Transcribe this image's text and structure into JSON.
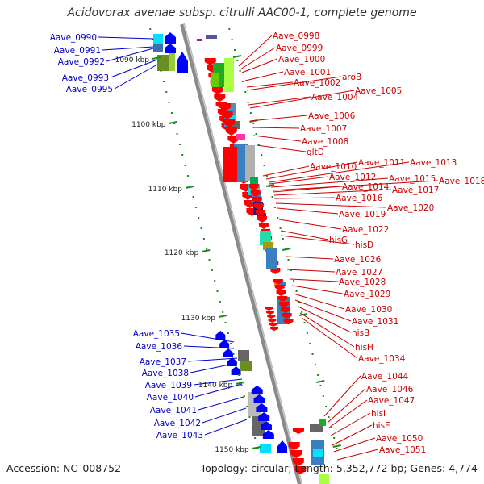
{
  "title": "Acidovorax avenae subsp. citrulli AAC00-1, complete genome",
  "footer": {
    "accession": "Accession: NC_008752",
    "summary": "Topology: circular; Length: 5,352,772 bp; Genes: 4,774"
  },
  "scale_labels": [
    "1090 kbp",
    "1100 kbp",
    "1110 kbp",
    "1120 kbp",
    "1130 kbp",
    "1140 kbp",
    "1150 kbp"
  ],
  "labels_left": [
    "Aave_0990",
    "Aave_0991",
    "Aave_0992",
    "Aave_0993",
    "Aave_0995",
    "Aave_1035",
    "Aave_1036",
    "Aave_1037",
    "Aave_1038",
    "Aave_1039",
    "Aave_1040",
    "Aave_1041",
    "Aave_1042",
    "Aave_1043"
  ],
  "labels_right": [
    "Aave_0998",
    "Aave_0999",
    "Aave_1000",
    "Aave_1001",
    "Aave_1002",
    "aroB",
    "Aave_1004",
    "Aave_1005",
    "Aave_1006",
    "Aave_1007",
    "Aave_1008",
    "gltD",
    "Aave_1010",
    "Aave_1011",
    "Aave_1013",
    "Aave_1012",
    "Aave_1015",
    "Aave_1018",
    "Aave_1014",
    "Aave_1017",
    "Aave_1016",
    "Aave_1020",
    "Aave_1019",
    "Aave_1022",
    "hisG",
    "hisD",
    "Aave_1026",
    "Aave_1027",
    "Aave_1028",
    "Aave_1029",
    "Aave_1030",
    "Aave_1031",
    "hisB",
    "hisH",
    "Aave_1034",
    "Aave_1044",
    "Aave_1046",
    "Aave_1047",
    "hisI",
    "hisE",
    "Aave_1050",
    "Aave_1051"
  ],
  "colors": {
    "forward_label": "#0000cc",
    "reverse_label": "#cc0000",
    "backbone": "#888888",
    "ticks": "#1a8a1a"
  }
}
